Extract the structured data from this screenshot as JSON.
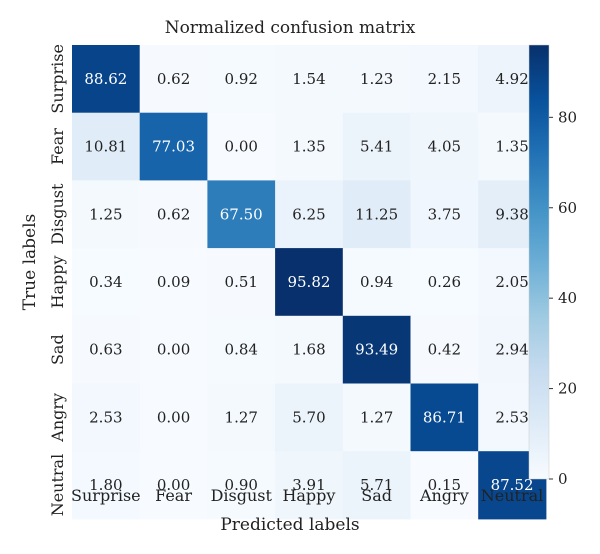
{
  "chart_data": {
    "type": "heatmap",
    "title": "Normalized confusion matrix",
    "xlabel": "Predicted labels",
    "ylabel": "True labels",
    "x_categories": [
      "Surprise",
      "Fear",
      "Disgust",
      "Happy",
      "Sad",
      "Angry",
      "Neutral"
    ],
    "y_categories": [
      "Surprise",
      "Fear",
      "Disgust",
      "Happy",
      "Sad",
      "Angry",
      "Neutral"
    ],
    "values": [
      [
        "88.62",
        "0.62",
        "0.92",
        "1.54",
        "1.23",
        "2.15",
        "4.92"
      ],
      [
        "10.81",
        "77.03",
        "0.00",
        "1.35",
        "5.41",
        "4.05",
        "1.35"
      ],
      [
        "1.25",
        "0.62",
        "67.50",
        "6.25",
        "11.25",
        "3.75",
        "9.38"
      ],
      [
        "0.34",
        "0.09",
        "0.51",
        "95.82",
        "0.94",
        "0.26",
        "2.05"
      ],
      [
        "0.63",
        "0.00",
        "0.84",
        "1.68",
        "93.49",
        "0.42",
        "2.94"
      ],
      [
        "2.53",
        "0.00",
        "1.27",
        "5.70",
        "1.27",
        "86.71",
        "2.53"
      ],
      [
        "1.80",
        "0.00",
        "0.90",
        "3.91",
        "5.71",
        "0.15",
        "87.52"
      ]
    ],
    "colorbar": {
      "range": [
        0,
        96
      ],
      "ticks": [
        "0",
        "20",
        "40",
        "60",
        "80"
      ]
    },
    "colors": {
      "low": "#f7fbff",
      "high": "#08306b"
    }
  }
}
